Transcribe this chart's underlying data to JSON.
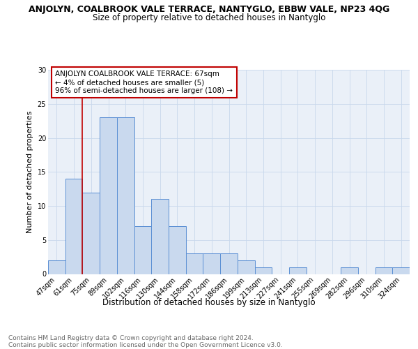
{
  "title": "ANJOLYN, COALBROOK VALE TERRACE, NANTYGLO, EBBW VALE, NP23 4QG",
  "subtitle": "Size of property relative to detached houses in Nantyglo",
  "xlabel": "Distribution of detached houses by size in Nantyglo",
  "ylabel": "Number of detached properties",
  "footer_line1": "Contains HM Land Registry data © Crown copyright and database right 2024.",
  "footer_line2": "Contains public sector information licensed under the Open Government Licence v3.0.",
  "bar_labels": [
    "47sqm",
    "61sqm",
    "75sqm",
    "89sqm",
    "102sqm",
    "116sqm",
    "130sqm",
    "144sqm",
    "158sqm",
    "172sqm",
    "186sqm",
    "199sqm",
    "213sqm",
    "227sqm",
    "241sqm",
    "255sqm",
    "269sqm",
    "282sqm",
    "296sqm",
    "310sqm",
    "324sqm"
  ],
  "bar_values": [
    2,
    14,
    12,
    23,
    23,
    7,
    11,
    7,
    3,
    3,
    3,
    2,
    1,
    0,
    1,
    0,
    0,
    1,
    0,
    1,
    1
  ],
  "bar_color": "#c9d9ee",
  "bar_edge_color": "#5b8fd4",
  "vline_color": "#c00000",
  "annotation_text": "ANJOLYN COALBROOK VALE TERRACE: 67sqm\n← 4% of detached houses are smaller (5)\n96% of semi-detached houses are larger (108) →",
  "annotation_box_edge": "#c00000",
  "ylim": [
    0,
    30
  ],
  "yticks": [
    0,
    5,
    10,
    15,
    20,
    25,
    30
  ],
  "grid_color": "#c8d8ec",
  "bg_color": "#eaf0f8",
  "title_fontsize": 9,
  "subtitle_fontsize": 8.5,
  "ylabel_fontsize": 8,
  "xlabel_fontsize": 8.5,
  "tick_fontsize": 7,
  "annot_fontsize": 7.5,
  "footer_fontsize": 6.5
}
